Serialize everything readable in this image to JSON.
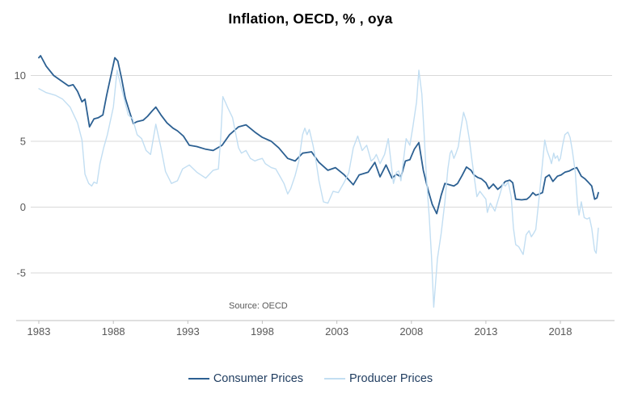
{
  "title": "Inflation, OECD, % , oya",
  "source_note": "Source: OECD",
  "legend": [
    {
      "label": "Consumer Prices",
      "color": "#2c6092"
    },
    {
      "label": "Producer Prices",
      "color": "#c2def2"
    }
  ],
  "colors": {
    "gridline": "#d9d9d9",
    "axis": "#bfbfbf",
    "tick_text": "#595959",
    "title_text": "#000000",
    "legend_text": "#1f3c5f"
  },
  "chart_data": {
    "type": "line",
    "title": "Inflation, OECD, % , oya",
    "xlabel": "",
    "ylabel": "",
    "x_ticks": [
      1983,
      1988,
      1993,
      1998,
      2003,
      2008,
      2013,
      2018
    ],
    "y_ticks": [
      -5,
      0,
      5,
      10
    ],
    "xlim": [
      1982.5,
      2021.3
    ],
    "ylim": [
      -8.6,
      12.1
    ],
    "grid": true,
    "legend_position": "bottom",
    "annotation": "Source: OECD",
    "series": [
      {
        "name": "Consumer Prices",
        "color": "#2c6092",
        "points": [
          [
            1983.0,
            11.35
          ],
          [
            1983.12,
            11.5
          ],
          [
            1983.5,
            10.7
          ],
          [
            1984.0,
            10.0
          ],
          [
            1984.5,
            9.6
          ],
          [
            1985.0,
            9.2
          ],
          [
            1985.3,
            9.3
          ],
          [
            1985.6,
            8.8
          ],
          [
            1985.9,
            8.0
          ],
          [
            1986.1,
            8.2
          ],
          [
            1986.4,
            6.1
          ],
          [
            1986.7,
            6.7
          ],
          [
            1987.0,
            6.8
          ],
          [
            1987.3,
            7.0
          ],
          [
            1987.55,
            8.5
          ],
          [
            1987.8,
            9.8
          ],
          [
            1988.1,
            11.35
          ],
          [
            1988.3,
            11.1
          ],
          [
            1988.55,
            9.8
          ],
          [
            1988.8,
            8.3
          ],
          [
            1989.1,
            7.2
          ],
          [
            1989.35,
            6.35
          ],
          [
            1989.6,
            6.5
          ],
          [
            1990.0,
            6.6
          ],
          [
            1990.3,
            6.9
          ],
          [
            1990.6,
            7.3
          ],
          [
            1990.85,
            7.6
          ],
          [
            1991.2,
            7.0
          ],
          [
            1991.6,
            6.4
          ],
          [
            1992.0,
            6.0
          ],
          [
            1992.3,
            5.8
          ],
          [
            1992.7,
            5.4
          ],
          [
            1993.1,
            4.7
          ],
          [
            1993.6,
            4.6
          ],
          [
            1994.2,
            4.4
          ],
          [
            1994.7,
            4.3
          ],
          [
            1995.3,
            4.7
          ],
          [
            1995.8,
            5.5
          ],
          [
            1996.4,
            6.1
          ],
          [
            1996.9,
            6.25
          ],
          [
            1997.5,
            5.7
          ],
          [
            1998.0,
            5.3
          ],
          [
            1998.6,
            5.0
          ],
          [
            1999.1,
            4.5
          ],
          [
            1999.7,
            3.7
          ],
          [
            2000.2,
            3.5
          ],
          [
            2000.7,
            4.1
          ],
          [
            2001.3,
            4.2
          ],
          [
            2001.8,
            3.4
          ],
          [
            2002.4,
            2.8
          ],
          [
            2002.9,
            3.0
          ],
          [
            2003.5,
            2.45
          ],
          [
            2004.1,
            1.7
          ],
          [
            2004.5,
            2.45
          ],
          [
            2005.1,
            2.65
          ],
          [
            2005.55,
            3.4
          ],
          [
            2005.9,
            2.3
          ],
          [
            2006.3,
            3.2
          ],
          [
            2006.7,
            2.2
          ],
          [
            2007.0,
            2.5
          ],
          [
            2007.3,
            2.3
          ],
          [
            2007.6,
            3.5
          ],
          [
            2007.9,
            3.6
          ],
          [
            2008.2,
            4.4
          ],
          [
            2008.5,
            4.9
          ],
          [
            2008.8,
            2.8
          ],
          [
            2009.1,
            1.4
          ],
          [
            2009.4,
            0.2
          ],
          [
            2009.7,
            -0.5
          ],
          [
            2010.0,
            0.9
          ],
          [
            2010.25,
            1.8
          ],
          [
            2010.55,
            1.7
          ],
          [
            2010.85,
            1.6
          ],
          [
            2011.1,
            1.8
          ],
          [
            2011.4,
            2.4
          ],
          [
            2011.7,
            3.05
          ],
          [
            2012.0,
            2.8
          ],
          [
            2012.2,
            2.45
          ],
          [
            2012.45,
            2.25
          ],
          [
            2012.7,
            2.15
          ],
          [
            2013.0,
            1.85
          ],
          [
            2013.2,
            1.4
          ],
          [
            2013.5,
            1.75
          ],
          [
            2013.8,
            1.35
          ],
          [
            2014.05,
            1.6
          ],
          [
            2014.3,
            1.95
          ],
          [
            2014.6,
            2.05
          ],
          [
            2014.8,
            1.85
          ],
          [
            2015.0,
            0.6
          ],
          [
            2015.4,
            0.55
          ],
          [
            2015.75,
            0.6
          ],
          [
            2015.95,
            0.8
          ],
          [
            2016.15,
            1.1
          ],
          [
            2016.35,
            0.9
          ],
          [
            2016.6,
            1.0
          ],
          [
            2016.8,
            1.1
          ],
          [
            2017.0,
            2.25
          ],
          [
            2017.25,
            2.45
          ],
          [
            2017.5,
            1.95
          ],
          [
            2017.8,
            2.35
          ],
          [
            2018.05,
            2.45
          ],
          [
            2018.3,
            2.65
          ],
          [
            2018.6,
            2.75
          ],
          [
            2018.85,
            2.9
          ],
          [
            2019.1,
            3.0
          ],
          [
            2019.4,
            2.35
          ],
          [
            2019.65,
            2.15
          ],
          [
            2019.9,
            1.85
          ],
          [
            2020.1,
            1.6
          ],
          [
            2020.3,
            0.6
          ],
          [
            2020.45,
            0.7
          ],
          [
            2020.55,
            1.1
          ]
        ]
      },
      {
        "name": "Producer Prices",
        "color": "#c2def2",
        "points": [
          [
            1983.0,
            9.0
          ],
          [
            1983.5,
            8.7
          ],
          [
            1984.1,
            8.5
          ],
          [
            1984.6,
            8.2
          ],
          [
            1985.1,
            7.6
          ],
          [
            1985.6,
            6.4
          ],
          [
            1985.9,
            5.1
          ],
          [
            1986.1,
            2.5
          ],
          [
            1986.35,
            1.8
          ],
          [
            1986.55,
            1.6
          ],
          [
            1986.7,
            1.9
          ],
          [
            1986.9,
            1.8
          ],
          [
            1987.1,
            3.3
          ],
          [
            1987.35,
            4.5
          ],
          [
            1987.6,
            5.5
          ],
          [
            1988.0,
            7.6
          ],
          [
            1988.25,
            10.4
          ],
          [
            1988.6,
            8.8
          ],
          [
            1989.0,
            7.0
          ],
          [
            1989.3,
            6.7
          ],
          [
            1989.6,
            5.5
          ],
          [
            1989.9,
            5.2
          ],
          [
            1990.2,
            4.3
          ],
          [
            1990.5,
            4.0
          ],
          [
            1990.85,
            6.3
          ],
          [
            1991.2,
            4.5
          ],
          [
            1991.5,
            2.7
          ],
          [
            1991.9,
            1.8
          ],
          [
            1992.3,
            2.0
          ],
          [
            1992.65,
            2.9
          ],
          [
            1993.1,
            3.2
          ],
          [
            1993.6,
            2.65
          ],
          [
            1994.2,
            2.2
          ],
          [
            1994.7,
            2.8
          ],
          [
            1995.05,
            2.9
          ],
          [
            1995.2,
            5.1
          ],
          [
            1995.35,
            8.4
          ],
          [
            1995.7,
            7.5
          ],
          [
            1996.0,
            6.8
          ],
          [
            1996.4,
            4.5
          ],
          [
            1996.6,
            4.1
          ],
          [
            1996.9,
            4.3
          ],
          [
            1997.2,
            3.7
          ],
          [
            1997.5,
            3.5
          ],
          [
            1997.7,
            3.6
          ],
          [
            1998.0,
            3.7
          ],
          [
            1998.2,
            3.3
          ],
          [
            1998.6,
            3.0
          ],
          [
            1998.9,
            2.9
          ],
          [
            1999.2,
            2.3
          ],
          [
            1999.45,
            1.8
          ],
          [
            1999.7,
            1.0
          ],
          [
            1999.9,
            1.4
          ],
          [
            2000.2,
            2.4
          ],
          [
            2000.45,
            3.5
          ],
          [
            2000.7,
            5.5
          ],
          [
            2000.85,
            6.0
          ],
          [
            2001.0,
            5.5
          ],
          [
            2001.15,
            5.9
          ],
          [
            2001.4,
            4.7
          ],
          [
            2001.6,
            3.5
          ],
          [
            2001.8,
            2.0
          ],
          [
            2002.1,
            0.4
          ],
          [
            2002.4,
            0.3
          ],
          [
            2002.75,
            1.2
          ],
          [
            2003.1,
            1.1
          ],
          [
            2003.5,
            1.9
          ],
          [
            2003.8,
            2.6
          ],
          [
            2004.1,
            4.5
          ],
          [
            2004.4,
            5.4
          ],
          [
            2004.7,
            4.3
          ],
          [
            2005.0,
            4.7
          ],
          [
            2005.3,
            3.5
          ],
          [
            2005.5,
            3.7
          ],
          [
            2005.65,
            4.0
          ],
          [
            2005.9,
            3.3
          ],
          [
            2006.2,
            4.0
          ],
          [
            2006.45,
            5.2
          ],
          [
            2006.8,
            1.8
          ],
          [
            2007.0,
            2.65
          ],
          [
            2007.15,
            2.75
          ],
          [
            2007.3,
            2.0
          ],
          [
            2007.65,
            5.2
          ],
          [
            2007.9,
            4.7
          ],
          [
            2008.1,
            6.1
          ],
          [
            2008.35,
            8.0
          ],
          [
            2008.5,
            10.4
          ],
          [
            2008.7,
            8.6
          ],
          [
            2008.85,
            5.7
          ],
          [
            2009.0,
            2.45
          ],
          [
            2009.2,
            -0.8
          ],
          [
            2009.35,
            -3.7
          ],
          [
            2009.5,
            -7.6
          ],
          [
            2009.75,
            -3.9
          ],
          [
            2010.0,
            -2.0
          ],
          [
            2010.25,
            0.4
          ],
          [
            2010.45,
            2.9
          ],
          [
            2010.6,
            4.1
          ],
          [
            2010.7,
            4.3
          ],
          [
            2010.85,
            3.7
          ],
          [
            2011.0,
            4.1
          ],
          [
            2011.15,
            4.6
          ],
          [
            2011.3,
            5.8
          ],
          [
            2011.5,
            7.2
          ],
          [
            2011.7,
            6.5
          ],
          [
            2011.9,
            5.1
          ],
          [
            2012.05,
            3.7
          ],
          [
            2012.25,
            2.0
          ],
          [
            2012.4,
            0.8
          ],
          [
            2012.6,
            1.2
          ],
          [
            2012.8,
            0.9
          ],
          [
            2013.0,
            0.6
          ],
          [
            2013.1,
            -0.4
          ],
          [
            2013.3,
            0.3
          ],
          [
            2013.6,
            -0.3
          ],
          [
            2014.0,
            1.2
          ],
          [
            2014.15,
            1.8
          ],
          [
            2014.3,
            1.6
          ],
          [
            2014.5,
            1.9
          ],
          [
            2014.7,
            0.8
          ],
          [
            2014.85,
            -1.6
          ],
          [
            2015.0,
            -2.85
          ],
          [
            2015.2,
            -3.0
          ],
          [
            2015.5,
            -3.6
          ],
          [
            2015.7,
            -2.1
          ],
          [
            2015.9,
            -1.8
          ],
          [
            2016.05,
            -2.25
          ],
          [
            2016.2,
            -2.0
          ],
          [
            2016.35,
            -1.7
          ],
          [
            2016.6,
            1.0
          ],
          [
            2016.95,
            5.1
          ],
          [
            2017.1,
            4.3
          ],
          [
            2017.3,
            3.7
          ],
          [
            2017.4,
            3.3
          ],
          [
            2017.55,
            4.1
          ],
          [
            2017.65,
            3.7
          ],
          [
            2017.8,
            3.9
          ],
          [
            2017.9,
            3.5
          ],
          [
            2018.0,
            3.7
          ],
          [
            2018.15,
            4.7
          ],
          [
            2018.3,
            5.5
          ],
          [
            2018.5,
            5.7
          ],
          [
            2018.65,
            5.3
          ],
          [
            2018.8,
            4.3
          ],
          [
            2019.0,
            2.65
          ],
          [
            2019.15,
            0.2
          ],
          [
            2019.25,
            -0.6
          ],
          [
            2019.4,
            0.4
          ],
          [
            2019.6,
            -0.8
          ],
          [
            2019.8,
            -0.9
          ],
          [
            2019.95,
            -0.8
          ],
          [
            2020.1,
            -1.6
          ],
          [
            2020.3,
            -3.3
          ],
          [
            2020.4,
            -3.5
          ],
          [
            2020.55,
            -1.6
          ]
        ]
      }
    ]
  }
}
